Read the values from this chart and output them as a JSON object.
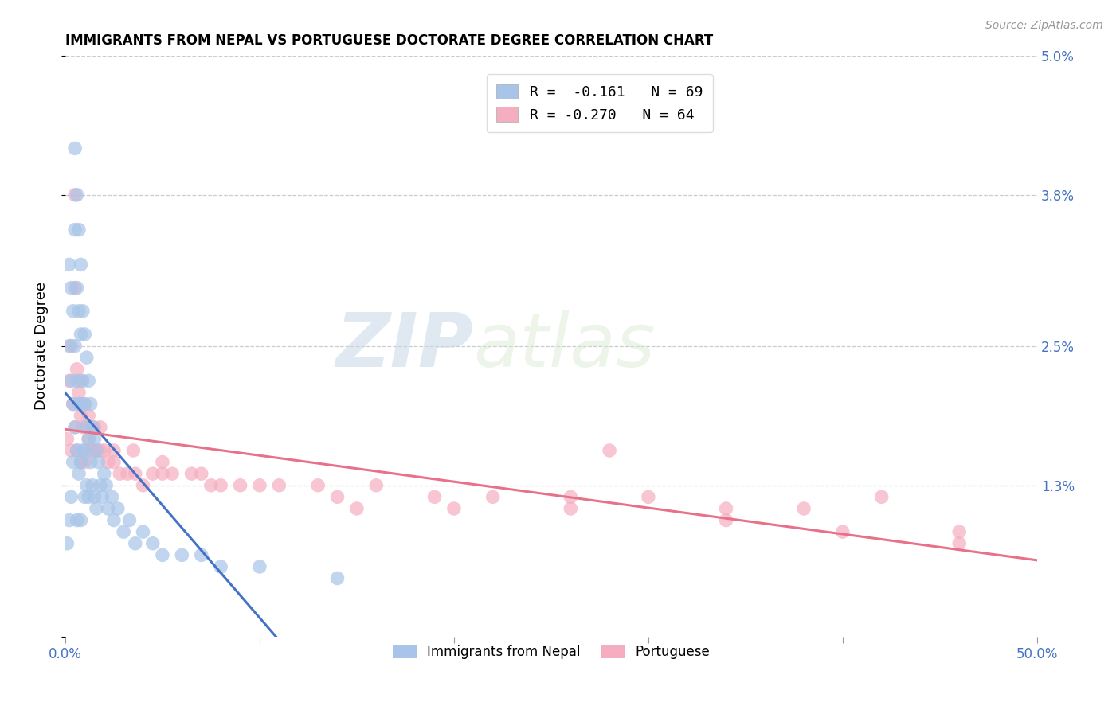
{
  "title": "IMMIGRANTS FROM NEPAL VS PORTUGUESE DOCTORATE DEGREE CORRELATION CHART",
  "source": "Source: ZipAtlas.com",
  "ylabel": "Doctorate Degree",
  "xlim": [
    0.0,
    0.5
  ],
  "ylim": [
    0.0,
    0.05
  ],
  "yticks": [
    0.0,
    0.013,
    0.025,
    0.038,
    0.05
  ],
  "ytick_labels": [
    "",
    "1.3%",
    "2.5%",
    "3.8%",
    "5.0%"
  ],
  "xticks": [
    0.0,
    0.1,
    0.2,
    0.3,
    0.4,
    0.5
  ],
  "xtick_labels": [
    "0.0%",
    "",
    "",
    "",
    "",
    "50.0%"
  ],
  "nepal_R": -0.161,
  "nepal_N": 69,
  "portuguese_R": -0.27,
  "portuguese_N": 64,
  "nepal_color": "#a8c4e8",
  "portuguese_color": "#f5aec0",
  "nepal_line_color": "#4472c4",
  "portuguese_line_color": "#e8718a",
  "watermark_zip": "ZIP",
  "watermark_atlas": "atlas",
  "nepal_scatter_x": [
    0.001,
    0.002,
    0.002,
    0.002,
    0.003,
    0.003,
    0.003,
    0.004,
    0.004,
    0.004,
    0.005,
    0.005,
    0.005,
    0.005,
    0.006,
    0.006,
    0.006,
    0.006,
    0.006,
    0.007,
    0.007,
    0.007,
    0.007,
    0.008,
    0.008,
    0.008,
    0.008,
    0.008,
    0.009,
    0.009,
    0.009,
    0.01,
    0.01,
    0.01,
    0.01,
    0.011,
    0.011,
    0.011,
    0.012,
    0.012,
    0.012,
    0.013,
    0.013,
    0.014,
    0.014,
    0.015,
    0.015,
    0.016,
    0.016,
    0.017,
    0.018,
    0.019,
    0.02,
    0.021,
    0.022,
    0.024,
    0.025,
    0.027,
    0.03,
    0.033,
    0.036,
    0.04,
    0.045,
    0.05,
    0.06,
    0.07,
    0.08,
    0.1,
    0.14
  ],
  "nepal_scatter_y": [
    0.008,
    0.032,
    0.025,
    0.01,
    0.03,
    0.022,
    0.012,
    0.028,
    0.02,
    0.015,
    0.042,
    0.035,
    0.025,
    0.018,
    0.038,
    0.03,
    0.022,
    0.016,
    0.01,
    0.035,
    0.028,
    0.02,
    0.014,
    0.032,
    0.026,
    0.02,
    0.015,
    0.01,
    0.028,
    0.022,
    0.016,
    0.026,
    0.02,
    0.016,
    0.012,
    0.024,
    0.018,
    0.013,
    0.022,
    0.017,
    0.012,
    0.02,
    0.015,
    0.018,
    0.013,
    0.017,
    0.012,
    0.016,
    0.011,
    0.015,
    0.013,
    0.012,
    0.014,
    0.013,
    0.011,
    0.012,
    0.01,
    0.011,
    0.009,
    0.01,
    0.008,
    0.009,
    0.008,
    0.007,
    0.007,
    0.007,
    0.006,
    0.006,
    0.005
  ],
  "portuguese_scatter_x": [
    0.001,
    0.002,
    0.003,
    0.003,
    0.004,
    0.005,
    0.005,
    0.006,
    0.006,
    0.007,
    0.008,
    0.008,
    0.009,
    0.01,
    0.01,
    0.011,
    0.012,
    0.013,
    0.014,
    0.015,
    0.016,
    0.018,
    0.02,
    0.022,
    0.025,
    0.028,
    0.032,
    0.036,
    0.04,
    0.045,
    0.05,
    0.055,
    0.065,
    0.075,
    0.09,
    0.11,
    0.13,
    0.16,
    0.19,
    0.22,
    0.26,
    0.3,
    0.34,
    0.38,
    0.42,
    0.46,
    0.005,
    0.008,
    0.012,
    0.018,
    0.025,
    0.035,
    0.05,
    0.07,
    0.1,
    0.14,
    0.2,
    0.26,
    0.34,
    0.4,
    0.46,
    0.28,
    0.15,
    0.08
  ],
  "portuguese_scatter_y": [
    0.017,
    0.022,
    0.025,
    0.016,
    0.02,
    0.038,
    0.018,
    0.023,
    0.016,
    0.021,
    0.019,
    0.015,
    0.018,
    0.02,
    0.015,
    0.018,
    0.017,
    0.016,
    0.016,
    0.018,
    0.016,
    0.016,
    0.016,
    0.015,
    0.015,
    0.014,
    0.014,
    0.014,
    0.013,
    0.014,
    0.014,
    0.014,
    0.014,
    0.013,
    0.013,
    0.013,
    0.013,
    0.013,
    0.012,
    0.012,
    0.012,
    0.012,
    0.011,
    0.011,
    0.012,
    0.008,
    0.03,
    0.022,
    0.019,
    0.018,
    0.016,
    0.016,
    0.015,
    0.014,
    0.013,
    0.012,
    0.011,
    0.011,
    0.01,
    0.009,
    0.009,
    0.016,
    0.011,
    0.013
  ]
}
